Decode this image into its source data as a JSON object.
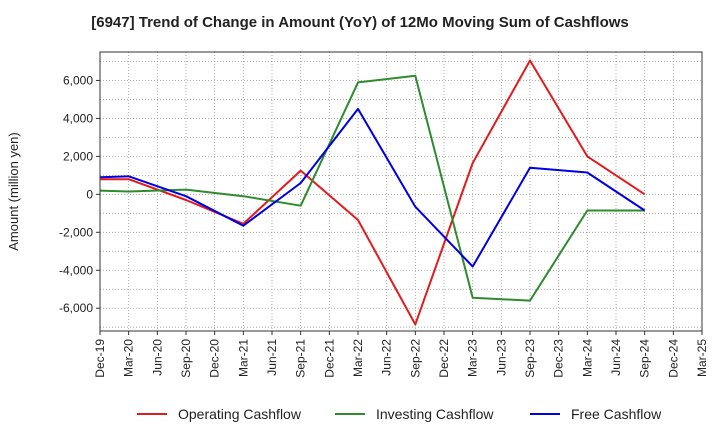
{
  "chart_data": {
    "type": "line",
    "title": "[6947]  Trend of Change in Amount (YoY) of 12Mo Moving Sum of Cashflows",
    "xlabel": "",
    "ylabel": "Amount (million yen)",
    "ylim": [
      -7200,
      7500
    ],
    "yticks": [
      -6000,
      -4000,
      -2000,
      0,
      2000,
      4000,
      6000
    ],
    "ytick_labels": [
      "-6,000",
      "-4,000",
      "-2,000",
      "0",
      "2,000",
      "4,000",
      "6,000"
    ],
    "categories": [
      "Dec-19",
      "Mar-20",
      "Jun-20",
      "Sep-20",
      "Dec-20",
      "Mar-21",
      "Jun-21",
      "Sep-21",
      "Dec-21",
      "Mar-22",
      "Jun-22",
      "Sep-22",
      "Dec-22",
      "Mar-23",
      "Jun-23",
      "Sep-23",
      "Dec-23",
      "Mar-24",
      "Jun-24",
      "Sep-24",
      "Dec-24",
      "Mar-25"
    ],
    "grid": true,
    "legend_position": "bottom",
    "series": [
      {
        "name": "Operating Cashflow",
        "color": "#e41a1c",
        "values": [
          800,
          800,
          null,
          -300,
          null,
          -1550,
          null,
          1250,
          null,
          -1350,
          null,
          -6850,
          null,
          1650,
          null,
          7050,
          null,
          2000,
          null,
          0,
          null,
          null
        ]
      },
      {
        "name": "Investing Cashflow",
        "color": "#2e8b2e",
        "values": [
          200,
          150,
          null,
          250,
          null,
          -100,
          null,
          -600,
          null,
          5900,
          null,
          6250,
          null,
          -5450,
          null,
          -5600,
          null,
          -850,
          null,
          -850,
          null,
          null
        ]
      },
      {
        "name": "Free Cashflow",
        "color": "#0000e0",
        "values": [
          900,
          950,
          null,
          -100,
          null,
          -1650,
          null,
          600,
          null,
          4500,
          null,
          -650,
          null,
          -3800,
          null,
          1400,
          null,
          1150,
          null,
          -850,
          null,
          null
        ]
      }
    ]
  }
}
